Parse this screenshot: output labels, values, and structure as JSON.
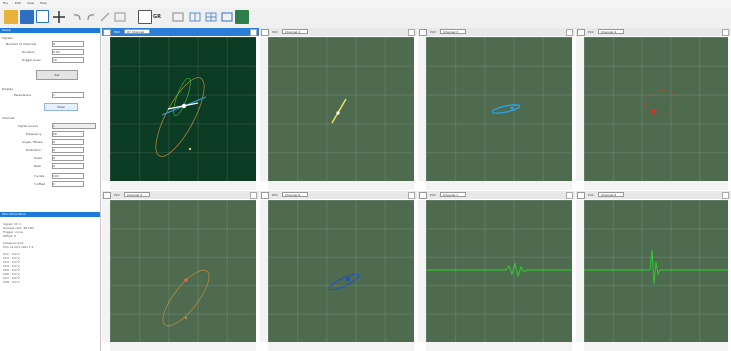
{
  "menu": [
    "File",
    "Edit",
    "View",
    "Help"
  ],
  "toolbar_icons": [
    "open-folder-icon",
    "save-icon",
    "select-icon",
    "crosshair-icon",
    "undo-icon",
    "redo-icon",
    "brush-icon",
    "layout-icon",
    "grid-icon",
    "export-icon",
    "zoom-fit-icon",
    "layout-two-icon",
    "layout-four-icon",
    "layout-eight-icon",
    "add-plot-icon"
  ],
  "left_panel": {
    "header": "Setup",
    "section1": "Signals",
    "fields": [
      {
        "label": "Number of channels",
        "value": "8"
      },
      {
        "label": "Duration",
        "value": "0.05"
      },
      {
        "label": "Trigger level",
        "value": "10"
      }
    ],
    "apply": "Set",
    "section2": "Display",
    "persistence_label": "Persistence",
    "persistence_value": "1",
    "clear": "Clear",
    "section3": "Channel",
    "channel_fields": [
      {
        "label": "Signal source",
        "value": "1"
      },
      {
        "label": "Frequency",
        "value": "60"
      },
      {
        "label": "Angle / Phase",
        "value": "0"
      },
      {
        "label": "Distortion",
        "value": "0"
      },
      {
        "label": "Scale",
        "value": "0"
      },
      {
        "label": "Rate",
        "value": "0"
      },
      {
        "label": "Y-scale",
        "value": "100"
      },
      {
        "label": "Y-offset",
        "value": "0"
      }
    ],
    "info_header": "Plot information",
    "info_lines": [
      "Signal: Ch 1",
      "Sample rate: 48 kHz",
      "Trigger: none",
      "Offset: 0",
      "Lissajous plot",
      "Ch1 vs Ch2 ratio 1:1",
      "Ch1 : 0.0 V",
      "Ch2 : 0.0 V",
      "Ch3 : 0.0 V",
      "Ch4 : 0.0 V",
      "Ch5 : 0.0 V",
      "Ch6 : 0.0 V",
      "Ch7 : 0.0 V",
      "Ch8 : 0.0 V"
    ]
  },
  "plots": [
    {
      "num": "1",
      "label": "Plot",
      "channel": "XY Channel"
    },
    {
      "num": "2",
      "label": "Plot",
      "channel": "Channel 2"
    },
    {
      "num": "3",
      "label": "Plot",
      "channel": "Channel 3"
    },
    {
      "num": "4",
      "label": "Plot",
      "channel": "Channel 4"
    },
    {
      "num": "5",
      "label": "Plot",
      "channel": "Channel 5"
    },
    {
      "num": "6",
      "label": "Plot",
      "channel": "Channel 6"
    },
    {
      "num": "7",
      "label": "Plot",
      "channel": "Channel 7"
    },
    {
      "num": "8",
      "label": "Plot",
      "channel": "Channel 8"
    }
  ],
  "colors": {
    "plot_bg": "#4e6b50",
    "plot_bg_active": "#0c3b24",
    "accent": "#1d7ad8"
  }
}
